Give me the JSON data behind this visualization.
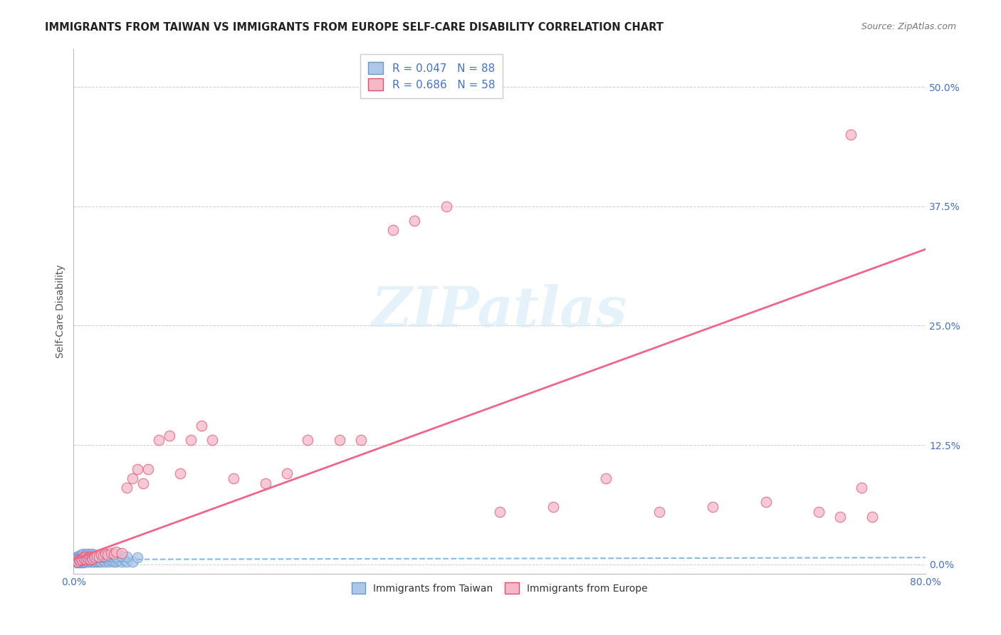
{
  "title": "IMMIGRANTS FROM TAIWAN VS IMMIGRANTS FROM EUROPE SELF-CARE DISABILITY CORRELATION CHART",
  "source": "Source: ZipAtlas.com",
  "ylabel": "Self-Care Disability",
  "ytick_labels": [
    "0.0%",
    "12.5%",
    "25.0%",
    "37.5%",
    "50.0%"
  ],
  "ytick_values": [
    0.0,
    0.125,
    0.25,
    0.375,
    0.5
  ],
  "xlim": [
    0.0,
    0.8
  ],
  "ylim": [
    -0.01,
    0.54
  ],
  "taiwan_R": 0.047,
  "taiwan_N": 88,
  "europe_R": 0.686,
  "europe_N": 58,
  "taiwan_color": "#aec6e8",
  "europe_color": "#f5b8c8",
  "taiwan_edge_color": "#6699cc",
  "europe_edge_color": "#e05070",
  "taiwan_line_color": "#88bbdd",
  "europe_line_color": "#ee6688",
  "watermark_text": "ZIPatlas",
  "background_color": "#ffffff",
  "grid_color": "#cccccc",
  "taiwan_x": [
    0.002,
    0.003,
    0.003,
    0.004,
    0.004,
    0.005,
    0.005,
    0.005,
    0.006,
    0.006,
    0.006,
    0.007,
    0.007,
    0.007,
    0.008,
    0.008,
    0.008,
    0.009,
    0.009,
    0.009,
    0.01,
    0.01,
    0.01,
    0.011,
    0.011,
    0.012,
    0.012,
    0.013,
    0.013,
    0.014,
    0.014,
    0.015,
    0.015,
    0.016,
    0.016,
    0.017,
    0.018,
    0.018,
    0.019,
    0.02,
    0.02,
    0.021,
    0.022,
    0.022,
    0.023,
    0.024,
    0.025,
    0.026,
    0.028,
    0.03,
    0.032,
    0.033,
    0.035,
    0.038,
    0.04,
    0.042,
    0.045,
    0.048,
    0.05,
    0.055,
    0.003,
    0.004,
    0.005,
    0.006,
    0.007,
    0.008,
    0.009,
    0.01,
    0.011,
    0.012,
    0.013,
    0.014,
    0.015,
    0.016,
    0.017,
    0.018,
    0.019,
    0.02,
    0.022,
    0.024,
    0.026,
    0.028,
    0.03,
    0.035,
    0.04,
    0.045,
    0.05,
    0.06
  ],
  "taiwan_y": [
    0.003,
    0.004,
    0.002,
    0.005,
    0.003,
    0.002,
    0.004,
    0.006,
    0.003,
    0.005,
    0.007,
    0.002,
    0.004,
    0.006,
    0.003,
    0.005,
    0.007,
    0.002,
    0.004,
    0.006,
    0.003,
    0.005,
    0.007,
    0.004,
    0.006,
    0.003,
    0.005,
    0.004,
    0.006,
    0.003,
    0.005,
    0.004,
    0.006,
    0.003,
    0.005,
    0.004,
    0.003,
    0.005,
    0.004,
    0.003,
    0.005,
    0.004,
    0.003,
    0.005,
    0.004,
    0.003,
    0.004,
    0.003,
    0.004,
    0.003,
    0.004,
    0.003,
    0.004,
    0.003,
    0.003,
    0.004,
    0.003,
    0.004,
    0.003,
    0.003,
    0.008,
    0.007,
    0.009,
    0.008,
    0.01,
    0.009,
    0.011,
    0.008,
    0.01,
    0.009,
    0.011,
    0.008,
    0.01,
    0.009,
    0.011,
    0.008,
    0.01,
    0.009,
    0.008,
    0.009,
    0.008,
    0.009,
    0.008,
    0.009,
    0.008,
    0.009,
    0.008,
    0.007
  ],
  "europe_x": [
    0.004,
    0.005,
    0.006,
    0.007,
    0.008,
    0.009,
    0.01,
    0.011,
    0.012,
    0.013,
    0.014,
    0.015,
    0.016,
    0.017,
    0.018,
    0.019,
    0.02,
    0.022,
    0.024,
    0.026,
    0.028,
    0.03,
    0.032,
    0.035,
    0.038,
    0.04,
    0.045,
    0.05,
    0.055,
    0.06,
    0.065,
    0.07,
    0.08,
    0.09,
    0.1,
    0.11,
    0.12,
    0.13,
    0.15,
    0.18,
    0.2,
    0.22,
    0.25,
    0.27,
    0.3,
    0.32,
    0.35,
    0.4,
    0.45,
    0.5,
    0.55,
    0.6,
    0.65,
    0.7,
    0.72,
    0.74,
    0.75,
    0.73
  ],
  "europe_y": [
    0.003,
    0.005,
    0.004,
    0.006,
    0.005,
    0.007,
    0.006,
    0.008,
    0.005,
    0.007,
    0.006,
    0.008,
    0.005,
    0.007,
    0.006,
    0.008,
    0.007,
    0.009,
    0.008,
    0.01,
    0.009,
    0.011,
    0.01,
    0.012,
    0.011,
    0.013,
    0.012,
    0.08,
    0.09,
    0.1,
    0.085,
    0.1,
    0.13,
    0.135,
    0.095,
    0.13,
    0.145,
    0.13,
    0.09,
    0.085,
    0.095,
    0.13,
    0.13,
    0.13,
    0.35,
    0.36,
    0.375,
    0.055,
    0.06,
    0.09,
    0.055,
    0.06,
    0.065,
    0.055,
    0.05,
    0.08,
    0.05,
    0.45
  ],
  "europe_trend_x": [
    0.0,
    0.8
  ],
  "europe_trend_y": [
    0.005,
    0.33
  ],
  "taiwan_trend_x": [
    0.0,
    0.8
  ],
  "taiwan_trend_y": [
    0.005,
    0.007
  ]
}
